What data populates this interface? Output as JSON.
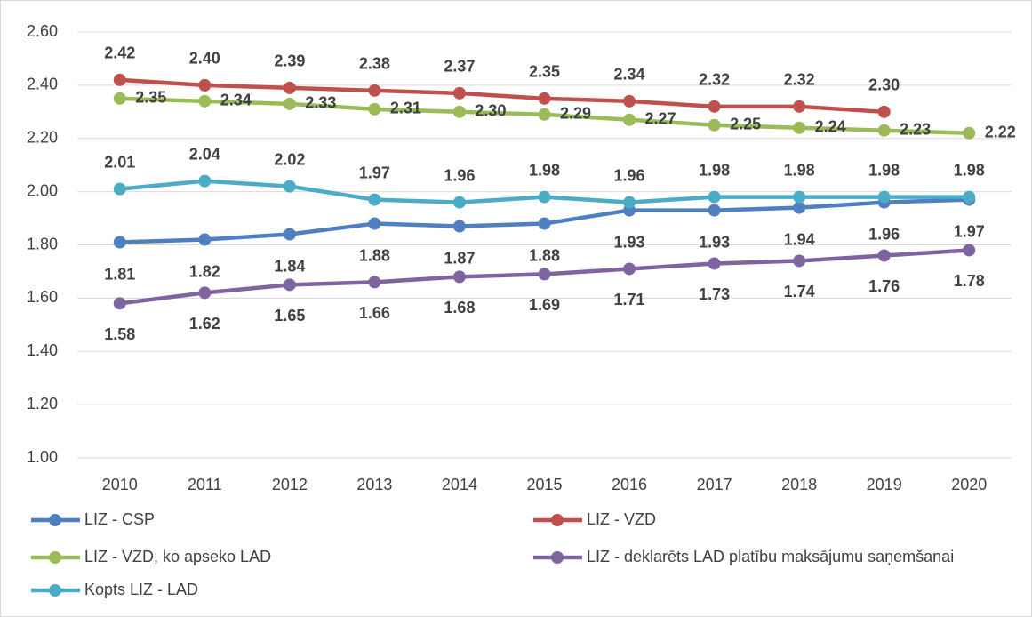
{
  "chart_data": {
    "type": "line",
    "categories": [
      "2010",
      "2011",
      "2012",
      "2013",
      "2014",
      "2015",
      "2016",
      "2017",
      "2018",
      "2019",
      "2020"
    ],
    "ylim": [
      1,
      2.6
    ],
    "yticks": [
      {
        "value": 1,
        "label": "1.00"
      },
      {
        "value": 1.2,
        "label": "1.20"
      },
      {
        "value": 1.4,
        "label": "1.40"
      },
      {
        "value": 1.6,
        "label": "1.60"
      },
      {
        "value": 1.8,
        "label": "1.80"
      },
      {
        "value": 2,
        "label": "2.00"
      },
      {
        "value": 2.2,
        "label": "2.20"
      },
      {
        "value": 2.4,
        "label": "2.40"
      },
      {
        "value": 2.6,
        "label": "2.60"
      }
    ],
    "grid": true,
    "series": [
      {
        "name": "LIZ - CSP",
        "color": "#4f7fbf",
        "values": [
          1.81,
          1.82,
          1.84,
          1.88,
          1.87,
          1.88,
          1.93,
          1.93,
          1.94,
          1.96,
          1.97
        ],
        "value_labels": [
          "1.81",
          "1.82",
          "1.84",
          "1.88",
          "1.87",
          "1.88",
          "1.93",
          "1.93",
          "1.94",
          "1.96",
          "1.97"
        ]
      },
      {
        "name": "LIZ - VZD",
        "color": "#c0504d",
        "values": [
          2.42,
          2.4,
          2.39,
          2.38,
          2.37,
          2.35,
          2.34,
          2.32,
          2.32,
          2.3,
          null
        ],
        "value_labels": [
          "2.42",
          "2.40",
          "2.39",
          "2.38",
          "2.37",
          "2.35",
          "2.34",
          "2.32",
          "2.32",
          "2.30",
          null
        ]
      },
      {
        "name": "LIZ - VZD, ko apseko LAD",
        "color": "#9bbb59",
        "values": [
          2.35,
          2.34,
          2.33,
          2.31,
          2.3,
          2.29,
          2.27,
          2.25,
          2.24,
          2.23,
          2.22
        ],
        "value_labels": [
          "2.35",
          "2.34",
          "2.33",
          "2.31",
          "2.30",
          "2.29",
          "2.27",
          "2.25",
          "2.24",
          "2.23",
          "2.22"
        ]
      },
      {
        "name": "LIZ - deklarēts LAD platību maksājumu saņemšanai",
        "color": "#8064a2",
        "values": [
          1.58,
          1.62,
          1.65,
          1.66,
          1.68,
          1.69,
          1.71,
          1.73,
          1.74,
          1.76,
          1.78
        ],
        "value_labels": [
          "1.58",
          "1.62",
          "1.65",
          "1.66",
          "1.68",
          "1.69",
          "1.71",
          "1.73",
          "1.74",
          "1.76",
          "1.78"
        ]
      },
      {
        "name": "Kopts LIZ - LAD",
        "color": "#4bacc6",
        "values": [
          2.01,
          2.04,
          2.02,
          1.97,
          1.96,
          1.98,
          1.96,
          1.98,
          1.98,
          1.98,
          1.98
        ],
        "value_labels": [
          "2.01",
          "2.04",
          "2.02",
          "1.97",
          "1.96",
          "1.98",
          "1.96",
          "1.98",
          "1.98",
          "1.98",
          "1.98"
        ]
      }
    ]
  }
}
